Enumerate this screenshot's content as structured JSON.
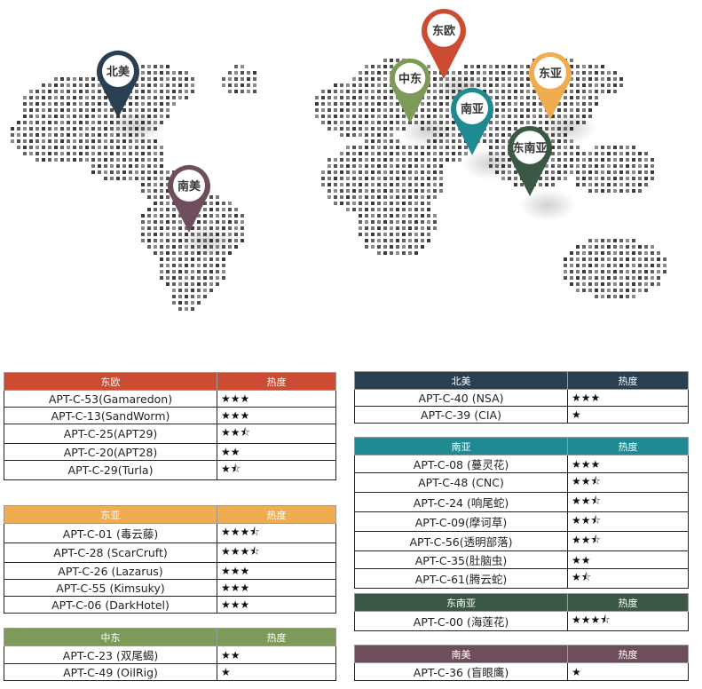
{
  "pins": [
    {
      "label": "北美",
      "color": "#2b3f52"
    },
    {
      "label": "东欧",
      "color": "#cc4b33"
    },
    {
      "label": "中东",
      "color": "#7d9a59"
    },
    {
      "label": "东亚",
      "color": "#f0ac50"
    },
    {
      "label": "南亚",
      "color": "#1f8a92"
    },
    {
      "label": "东南亚",
      "color": "#3b5845"
    },
    {
      "label": "南美",
      "color": "#6e4e5d"
    }
  ],
  "tables": {
    "east_europe": {
      "region": "东欧",
      "heat": "热度",
      "color": "#cc4b33",
      "rows": [
        {
          "name": "APT-C-53(Gamaredon)",
          "rating": "★★★"
        },
        {
          "name": "APT-C-13(SandWorm)",
          "rating": "★★★"
        },
        {
          "name": "APT-C-25(APT29)",
          "rating": "★★⯪"
        },
        {
          "name": "APT-C-20(APT28)",
          "rating": "★★"
        },
        {
          "name": "APT-C-29(Turla)",
          "rating": "★⯪"
        }
      ]
    },
    "east_asia": {
      "region": "东亚",
      "heat": "热度",
      "color": "#f0ac50",
      "rows": [
        {
          "name": "APT-C-01 (毒云藤)",
          "rating": "★★★⯪"
        },
        {
          "name": "APT-C-28 (ScarCruft)",
          "rating": "★★★⯪"
        },
        {
          "name": "APT-C-26 (Lazarus)",
          "rating": "★★★"
        },
        {
          "name": "APT-C-55 (Kimsuky)",
          "rating": "★★★"
        },
        {
          "name": "APT-C-06 (DarkHotel)",
          "rating": "★★★"
        }
      ]
    },
    "middle_east": {
      "region": "中东",
      "heat": "热度",
      "color": "#7d9a59",
      "rows": [
        {
          "name": "APT-C-23 (双尾蝎)",
          "rating": "★★"
        },
        {
          "name": "APT-C-49 (OilRig)",
          "rating": "★"
        }
      ]
    },
    "north_america": {
      "region": "北美",
      "heat": "热度",
      "color": "#2b3f52",
      "rows": [
        {
          "name": "APT-C-40 (NSA)",
          "rating": "★★★"
        },
        {
          "name": "APT-C-39 (CIA)",
          "rating": "★"
        }
      ]
    },
    "south_asia": {
      "region": "南亚",
      "heat": "热度",
      "color": "#1f8a92",
      "rows": [
        {
          "name": "APT-C-08 (蔓灵花)",
          "rating": "★★★"
        },
        {
          "name": "APT-C-48 (CNC)",
          "rating": "★★⯪"
        },
        {
          "name": "APT-C-24 (响尾蛇)",
          "rating": "★★⯪"
        },
        {
          "name": "APT-C-09(摩诃草)",
          "rating": "★★⯪"
        },
        {
          "name": "APT-C-56(透明部落)",
          "rating": "★★⯪"
        },
        {
          "name": "APT-C-35(肚脑虫)",
          "rating": "★★"
        },
        {
          "name": "APT-C-61(腾云蛇)",
          "rating": "★⯪"
        }
      ]
    },
    "southeast_asia": {
      "region": "东南亚",
      "heat": "热度",
      "color": "#3b5845",
      "rows": [
        {
          "name": "APT-C-00 (海莲花)",
          "rating": "★★★⯪"
        }
      ]
    },
    "south_america": {
      "region": "南美",
      "heat": "热度",
      "color": "#6e4e5d",
      "rows": [
        {
          "name": "APT-C-36 (盲眼鹰)",
          "rating": "★"
        }
      ]
    }
  }
}
